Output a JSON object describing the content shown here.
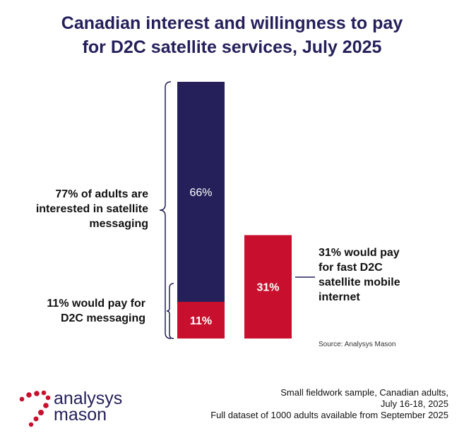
{
  "chart_data": {
    "type": "bar",
    "title": [
      "Canadian interest and willingness to pay",
      "for D2C satellite services, July 2025"
    ],
    "ylim": [
      0,
      80
    ],
    "bars": [
      {
        "segments": [
          {
            "value": 11,
            "label": "11%",
            "color": "#c8102e"
          },
          {
            "value": 66,
            "label": "66%",
            "color": "#25205a"
          }
        ]
      },
      {
        "segments": [
          {
            "value": 31,
            "label": "31%",
            "color": "#c8102e"
          }
        ]
      }
    ],
    "annotations": {
      "interested": [
        "77% of adults are",
        "interested in satellite",
        "messaging"
      ],
      "pay_messaging": [
        "11% would pay for",
        "D2C messaging"
      ],
      "pay_internet": [
        "31% would pay",
        "for fast D2C",
        "satellite mobile",
        "internet"
      ]
    },
    "source": "Source: Analysys Mason"
  },
  "footnote": [
    "Small fieldwork sample, Canadian adults,",
    "July 16-18, 2025",
    "Full dataset of 1000 adults available from September 2025"
  ],
  "logo": {
    "lines": [
      "analysys",
      "mason"
    ],
    "dot_color": "#c8102e",
    "text_color": "#25205a"
  }
}
